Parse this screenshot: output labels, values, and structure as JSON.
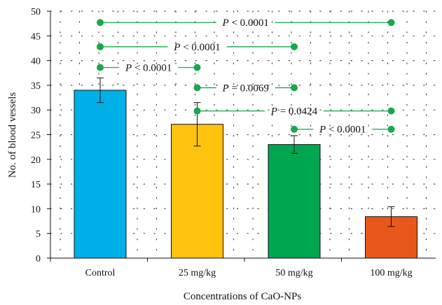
{
  "chart_data": {
    "type": "bar",
    "title": "",
    "xlabel": "Concentrations of CaO-NPs",
    "ylabel": "No. of blood vessels",
    "ylim": [
      0,
      50
    ],
    "yticks": [
      0,
      5,
      10,
      15,
      20,
      25,
      30,
      35,
      40,
      45,
      50
    ],
    "categories": [
      "Control",
      "25 mg/kg",
      "50 mg/kg",
      "100 mg/kg"
    ],
    "values": [
      34,
      27.1,
      23,
      8.4
    ],
    "error": [
      2.5,
      4.4,
      1.8,
      2
    ],
    "colors": [
      "#00b0e8",
      "#ffc20e",
      "#00a650",
      "#e8581c"
    ],
    "grid": "dotted",
    "comparisons": [
      {
        "from": 0,
        "to": 3,
        "y": 47.7,
        "label": "P < 0.0001"
      },
      {
        "from": 0,
        "to": 2,
        "y": 42.8,
        "label": "P < 0.0001"
      },
      {
        "from": 0,
        "to": 1,
        "y": 38.6,
        "label": "P < 0.0001"
      },
      {
        "from": 1,
        "to": 2,
        "y": 34.5,
        "label": "P = 0.0069"
      },
      {
        "from": 1,
        "to": 3,
        "y": 29.8,
        "label": "P = 0.0424"
      },
      {
        "from": 2,
        "to": 3,
        "y": 26.1,
        "label": "P < 0.0001"
      }
    ],
    "comparison_color": "#1aa64b"
  }
}
